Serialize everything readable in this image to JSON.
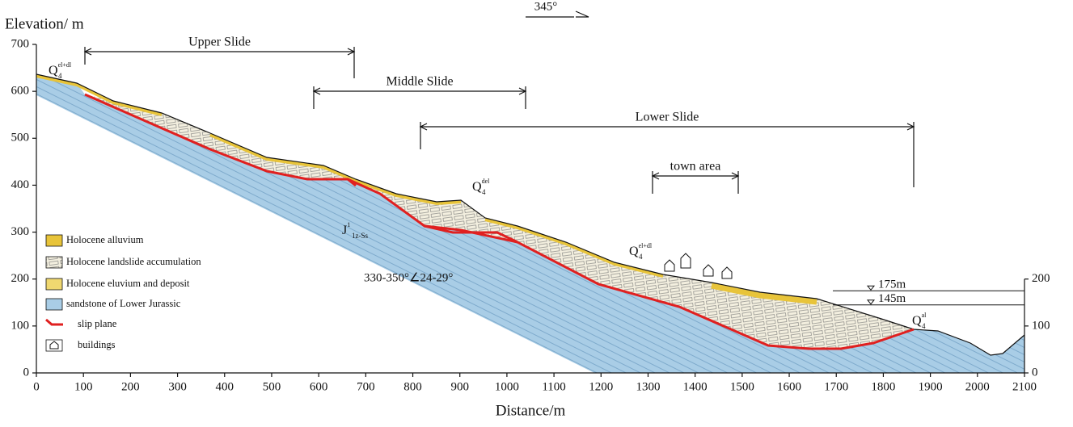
{
  "orientation": "345°",
  "axes": {
    "y_label": "Elevation/ m",
    "x_label": "Distance/m",
    "xticks": [
      0,
      100,
      200,
      300,
      400,
      500,
      600,
      700,
      800,
      900,
      1000,
      1100,
      1200,
      1300,
      1400,
      1500,
      1600,
      1700,
      1800,
      1900,
      2000,
      2100
    ],
    "yticks": [
      0,
      100,
      200,
      300,
      400,
      500,
      600,
      700
    ],
    "y2ticks": [
      0,
      100,
      200
    ]
  },
  "extents": [
    {
      "label": "Upper Slide"
    },
    {
      "label": "Middle Slide"
    },
    {
      "label": "Lower Slide"
    },
    {
      "label": "town area"
    }
  ],
  "strata_labels": [
    {
      "base": "Q",
      "sub": "4",
      "sup": "el+dl"
    },
    {
      "base": "Q",
      "sub": "4",
      "sup": "del"
    },
    {
      "base": "J",
      "sub": "1z-Ss",
      "sup": "1"
    },
    {
      "base": "Q",
      "sub": "4",
      "sup": "el+dl"
    },
    {
      "base": "Q",
      "sub": "4",
      "sup": "al"
    }
  ],
  "attitude": "330-350°∠24-29°",
  "water_levels": [
    {
      "value": 175,
      "label": "175m"
    },
    {
      "value": 145,
      "label": "145m"
    }
  ],
  "legend": [
    "Holocene alluvium",
    "Holocene landslide accumulation",
    "Holocene eluvium and deposit",
    "sandstone of Lower Jurassic",
    "slip plane",
    "buildings"
  ]
}
